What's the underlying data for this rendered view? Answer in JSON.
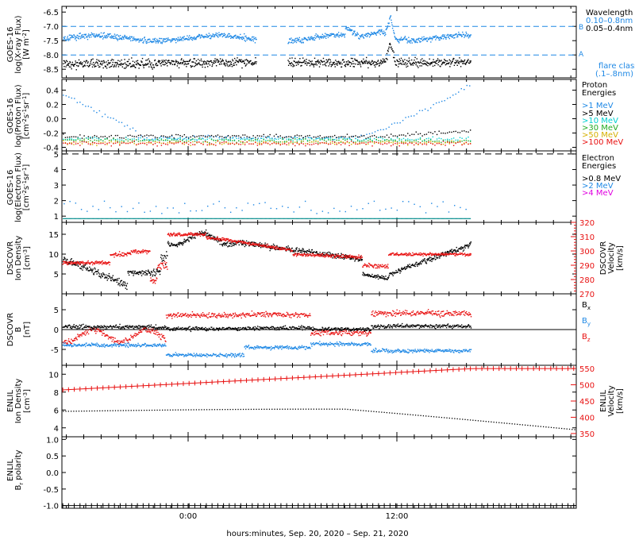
{
  "figure": {
    "x_axis_label": "hours:minutes, Sep. 20, 2020 – Sep. 21, 2020",
    "x_ticks": [
      "0:00",
      "12:00"
    ],
    "colors": {
      "black": "#000000",
      "blue": "#1e88e5",
      "cyan": "#00d0d0",
      "green": "#22aa22",
      "yellow": "#d4b000",
      "orange": "#ff7700",
      "red": "#e81010",
      "magenta": "#e000e0",
      "teal": "#008b8b"
    }
  },
  "chart_data": [
    {
      "type": "scatter",
      "ylabel": "GOES-16 log(X-ray Flux) [W m-2]",
      "ylim": [
        -8.8,
        -6.3
      ],
      "yticks": [
        "-6.5",
        "-7.0",
        "-7.5",
        "-8.0",
        "-8.5"
      ],
      "legend_title": "Wavelength",
      "legend": [
        "0.10–0.8nm",
        "0.05–0.4nm"
      ],
      "thresholds": [
        {
          "label": "B",
          "value": -7.0
        },
        {
          "label": "A",
          "value": -8.0
        }
      ],
      "note": "flare class (.1–.8nm)",
      "series": [
        {
          "name": "0.10–0.8nm",
          "color": "blue",
          "level": -7.4
        },
        {
          "name": "0.05–0.4nm",
          "color": "black",
          "level": -8.25
        }
      ]
    },
    {
      "type": "scatter",
      "ylabel": "GOES-16 log(Proton Flux) [cm-2 s-1 sr-1]",
      "ylim": [
        -0.45,
        0.55
      ],
      "yticks": [
        "0.4",
        "0.2",
        "0.0",
        "-0.2",
        "-0.4"
      ],
      "legend_title": "Proton Energies",
      "legend": [
        ">1 MeV",
        ">5 MeV",
        ">10 MeV",
        ">30 MeV",
        ">50 MeV",
        ">100 MeV"
      ],
      "series": [
        {
          "name": ">1 MeV",
          "color": "blue"
        },
        {
          "name": ">5 MeV",
          "color": "black"
        },
        {
          "name": ">10 MeV",
          "color": "cyan"
        },
        {
          "name": ">30 MeV",
          "color": "green"
        },
        {
          "name": ">50 MeV",
          "color": "yellow"
        },
        {
          "name": ">100 MeV",
          "color": "red"
        }
      ]
    },
    {
      "type": "scatter",
      "ylabel": "GOES-16 log(Electron Flux) [cm-2 s-1 sr-1]",
      "ylim": [
        0.6,
        5.2
      ],
      "yticks": [
        "5",
        "4",
        "3",
        "2",
        "1"
      ],
      "legend_title": "Electron Energies",
      "legend": [
        ">0.8 MeV",
        ">2 MeV",
        ">4 MeV"
      ],
      "threshold": 5.0,
      "series": [
        {
          "name": ">0.8 MeV",
          "color": "black"
        },
        {
          "name": ">2 MeV",
          "color": "blue"
        },
        {
          "name": ">4 MeV",
          "color": "magenta"
        }
      ]
    },
    {
      "type": "scatter",
      "ylabel": "DSCOVR Ion Density [cm-3]",
      "ylim": [
        0,
        18
      ],
      "yticks": [
        "15",
        "10",
        "5"
      ],
      "right_ylabel": "DSCOVR Velocity [km/s]",
      "right_ylim": [
        270,
        320
      ],
      "right_yticks": [
        "320",
        "310",
        "300",
        "290",
        "280",
        "270"
      ],
      "series": [
        {
          "name": "Density",
          "color": "black"
        },
        {
          "name": "Velocity",
          "color": "red"
        }
      ]
    },
    {
      "type": "scatter",
      "ylabel": "DSCOVR B [nT]",
      "ylim": [
        -9,
        9
      ],
      "yticks": [
        "5",
        "0",
        "-5"
      ],
      "legend": [
        "Bx",
        "By",
        "Bz"
      ],
      "series": [
        {
          "name": "Bx",
          "color": "black"
        },
        {
          "name": "By",
          "color": "blue"
        },
        {
          "name": "Bz",
          "color": "red"
        }
      ]
    },
    {
      "type": "line",
      "ylabel": "ENLIL Ion Density [cm-3]",
      "ylim": [
        3,
        11
      ],
      "yticks": [
        "10",
        "8",
        "6",
        "4"
      ],
      "right_ylabel": "ENLIL Velocity [km/s]",
      "right_ylim": [
        340,
        560
      ],
      "right_yticks": [
        "550",
        "500",
        "450",
        "400",
        "350"
      ],
      "series": [
        {
          "name": "Density",
          "color": "black"
        },
        {
          "name": "Velocity",
          "color": "red"
        }
      ]
    },
    {
      "type": "line",
      "ylabel": "ENLIL Br polarity",
      "ylim": [
        -1.08,
        1.08
      ],
      "yticks": [
        "1.0",
        "0.5",
        "0.0",
        "-0.5",
        "-1.0"
      ],
      "series": [
        {
          "name": "polarity",
          "color": "black",
          "value": -1.0
        }
      ]
    }
  ]
}
